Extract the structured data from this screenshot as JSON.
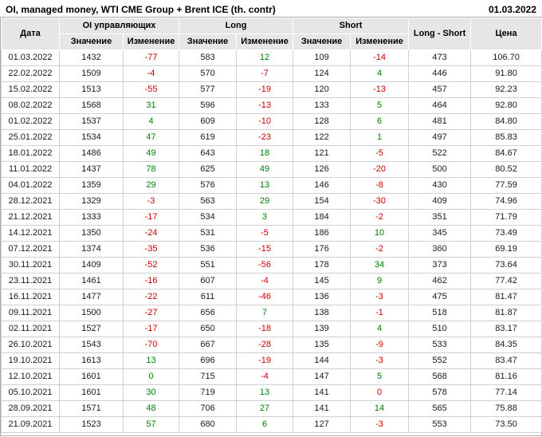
{
  "header": {
    "title": "OI, managed money, WTI CME Group + Brent ICE (th. contr)",
    "date": "01.03.2022"
  },
  "colors": {
    "positive_change": "#008000",
    "negative_change": "#cc0000",
    "header_background": "#e6e6e6",
    "gridline": "#d0d0d0"
  },
  "chart_data": {
    "type": "table",
    "title": "OI, managed money, WTI CME Group + Brent ICE (th. contr)",
    "report_date": "01.03.2022",
    "column_groups": [
      {
        "label": "Дата"
      },
      {
        "label": "OI управляющих"
      },
      {
        "label": "Long"
      },
      {
        "label": "Short"
      },
      {
        "label": "Long - Short"
      },
      {
        "label": "Цена"
      }
    ],
    "sub_headers": [
      "Значение",
      "Изменение",
      "Значение",
      "Изменение",
      "Значение",
      "Изменение"
    ],
    "row_format": [
      "date",
      "oi_value",
      "oi_change",
      "oi_change_color",
      "long_value",
      "long_change",
      "long_change_color",
      "short_value",
      "short_change",
      "short_change_color",
      "long_minus_short",
      "price"
    ],
    "rows": [
      [
        "01.03.2022",
        "1432",
        "-77",
        "down",
        "583",
        "12",
        "up",
        "109",
        "-14",
        "down",
        "473",
        "106.70"
      ],
      [
        "22.02.2022",
        "1509",
        "-4",
        "down",
        "570",
        "-7",
        "down",
        "124",
        "4",
        "up",
        "446",
        "91.80"
      ],
      [
        "15.02.2022",
        "1513",
        "-55",
        "down",
        "577",
        "-19",
        "down",
        "120",
        "-13",
        "down",
        "457",
        "92.23"
      ],
      [
        "08.02.2022",
        "1568",
        "31",
        "up",
        "596",
        "-13",
        "down",
        "133",
        "5",
        "up",
        "464",
        "92.80"
      ],
      [
        "01.02.2022",
        "1537",
        "4",
        "up",
        "609",
        "-10",
        "down",
        "128",
        "6",
        "up",
        "481",
        "84.80"
      ],
      [
        "25.01.2022",
        "1534",
        "47",
        "up",
        "619",
        "-23",
        "down",
        "122",
        "1",
        "up",
        "497",
        "85.83"
      ],
      [
        "18.01.2022",
        "1486",
        "49",
        "up",
        "643",
        "18",
        "up",
        "121",
        "-5",
        "down",
        "522",
        "84.67"
      ],
      [
        "11.01.2022",
        "1437",
        "78",
        "up",
        "625",
        "49",
        "up",
        "126",
        "-20",
        "down",
        "500",
        "80.52"
      ],
      [
        "04.01.2022",
        "1359",
        "29",
        "up",
        "576",
        "13",
        "up",
        "146",
        "-8",
        "down",
        "430",
        "77.59"
      ],
      [
        "28.12.2021",
        "1329",
        "-3",
        "down",
        "563",
        "29",
        "up",
        "154",
        "-30",
        "down",
        "409",
        "74.96"
      ],
      [
        "21.12.2021",
        "1333",
        "-17",
        "down",
        "534",
        "3",
        "up",
        "184",
        "-2",
        "down",
        "351",
        "71.79"
      ],
      [
        "14.12.2021",
        "1350",
        "-24",
        "down",
        "531",
        "-5",
        "down",
        "186",
        "10",
        "up",
        "345",
        "73.49"
      ],
      [
        "07.12.2021",
        "1374",
        "-35",
        "down",
        "536",
        "-15",
        "down",
        "176",
        "-2",
        "down",
        "360",
        "69.19"
      ],
      [
        "30.11.2021",
        "1409",
        "-52",
        "down",
        "551",
        "-56",
        "down",
        "178",
        "34",
        "up",
        "373",
        "73.64"
      ],
      [
        "23.11.2021",
        "1461",
        "-16",
        "down",
        "607",
        "-4",
        "down",
        "145",
        "9",
        "up",
        "462",
        "77.42"
      ],
      [
        "16.11.2021",
        "1477",
        "-22",
        "down",
        "611",
        "-46",
        "down",
        "136",
        "-3",
        "down",
        "475",
        "81.47"
      ],
      [
        "09.11.2021",
        "1500",
        "-27",
        "down",
        "656",
        "7",
        "up",
        "138",
        "-1",
        "down",
        "518",
        "81.87"
      ],
      [
        "02.11.2021",
        "1527",
        "-17",
        "down",
        "650",
        "-18",
        "down",
        "139",
        "4",
        "up",
        "510",
        "83.17"
      ],
      [
        "26.10.2021",
        "1543",
        "-70",
        "down",
        "667",
        "-28",
        "down",
        "135",
        "-9",
        "down",
        "533",
        "84.35"
      ],
      [
        "19.10.2021",
        "1613",
        "13",
        "up",
        "696",
        "-19",
        "down",
        "144",
        "-3",
        "down",
        "552",
        "83.47"
      ],
      [
        "12.10.2021",
        "1601",
        "0",
        "up",
        "715",
        "-4",
        "down",
        "147",
        "5",
        "up",
        "568",
        "81.16"
      ],
      [
        "05.10.2021",
        "1601",
        "30",
        "up",
        "719",
        "13",
        "up",
        "141",
        "0",
        "down",
        "578",
        "77.14"
      ],
      [
        "28.09.2021",
        "1571",
        "48",
        "up",
        "706",
        "27",
        "up",
        "141",
        "14",
        "up",
        "565",
        "75.88"
      ],
      [
        "21.09.2021",
        "1523",
        "57",
        "up",
        "680",
        "6",
        "up",
        "127",
        "-3",
        "down",
        "553",
        "73.50"
      ]
    ]
  }
}
